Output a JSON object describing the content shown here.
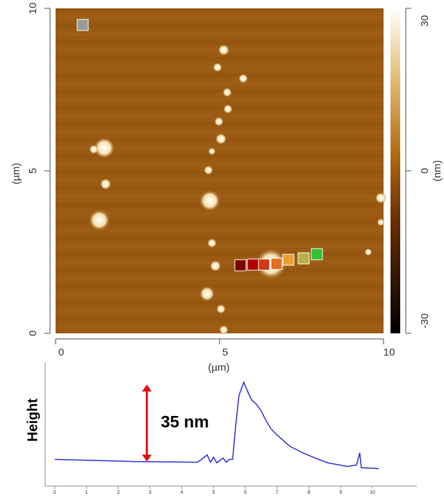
{
  "chart_data": [
    {
      "type": "image",
      "xlabel": "(µm)",
      "ylabel": "(µm)",
      "xlim": [
        0,
        10
      ],
      "ylim": [
        0,
        10
      ],
      "xticks": [
        0,
        5,
        10
      ],
      "yticks": [
        0,
        5,
        10
      ],
      "colorbar": {
        "label": "(nm)",
        "lim": [
          -30,
          30
        ],
        "ticks": [
          -30,
          0,
          30
        ]
      }
    },
    {
      "type": "line",
      "ylabel": "Height",
      "annotation": "35 nm",
      "annotation_value": 35,
      "color": "#2a2ad8",
      "x": [
        0,
        1.0,
        2.5,
        4.5,
        4.8,
        4.9,
        5.0,
        5.1,
        5.3,
        5.4,
        5.5,
        5.6,
        5.7,
        5.8,
        5.95,
        6.1,
        6.2,
        6.35,
        6.5,
        6.6,
        6.8,
        7.0,
        7.4,
        7.8,
        8.2,
        8.6,
        9.2,
        9.5,
        9.6,
        9.65,
        10.0,
        10.2
      ],
      "values": [
        1,
        0.6,
        0,
        -0.3,
        3,
        -0.3,
        2,
        -0.6,
        1.6,
        -0.3,
        1,
        1,
        17,
        30,
        36,
        31,
        28,
        26,
        23,
        20,
        15,
        12,
        7,
        4,
        1.6,
        -0.6,
        -2.2,
        -1.6,
        4,
        -2.8,
        -3,
        -3.2
      ],
      "xlim": [
        -0.3,
        11.4
      ],
      "ylim": [
        -8,
        45
      ],
      "xticks": [
        0,
        1,
        2,
        3,
        4,
        5,
        6,
        7,
        8,
        9,
        10
      ]
    }
  ]
}
